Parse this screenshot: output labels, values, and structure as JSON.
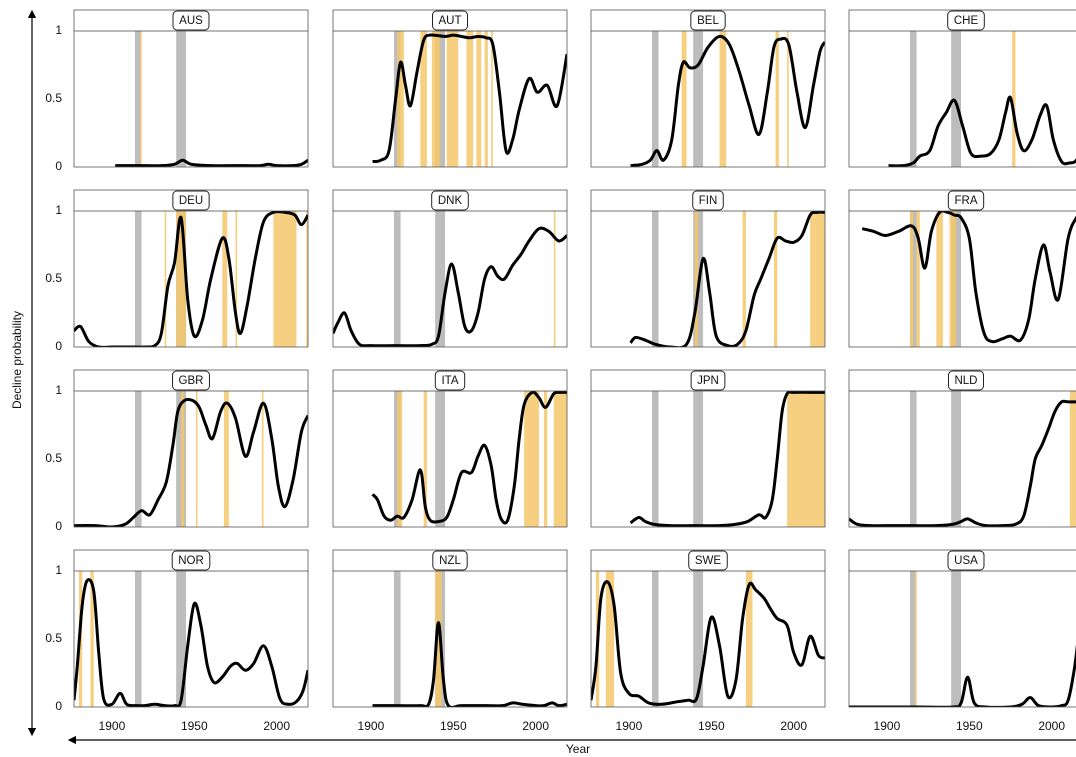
{
  "chart_data": {
    "type": "line",
    "xlabel": "Year",
    "ylabel": "Decline probability",
    "xlim": [
      1877,
      2019
    ],
    "xticks": [
      1900,
      1950,
      2000
    ],
    "ylim": [
      0,
      1
    ],
    "yticks": [
      0,
      0.5,
      1
    ],
    "line_color": "#000000",
    "reference_color": "#bdbdbd",
    "period_color": "#f5c76b",
    "reference_periods": [
      [
        1914,
        1918
      ],
      [
        1939,
        1945
      ]
    ],
    "panels": [
      {
        "title": "AUS",
        "x": [
          1902,
          1910,
          1920,
          1930,
          1938,
          1943,
          1948,
          1960,
          1980,
          1990,
          1995,
          2000,
          2010,
          2015,
          2019
        ],
        "values": [
          0.01,
          0.01,
          0.01,
          0.01,
          0.02,
          0.05,
          0.02,
          0.01,
          0.01,
          0.01,
          0.02,
          0.01,
          0.01,
          0.02,
          0.05
        ],
        "decline_periods": [
          [
            1917,
            1918
          ]
        ]
      },
      {
        "title": "AUT",
        "x": [
          1901,
          1906,
          1911,
          1915,
          1918,
          1921,
          1924,
          1928,
          1932,
          1936,
          1945,
          1950,
          1955,
          1960,
          1965,
          1970,
          1974,
          1978,
          1982,
          1986,
          1990,
          1996,
          2001,
          2007,
          2013,
          2019
        ],
        "values": [
          0.04,
          0.05,
          0.12,
          0.5,
          0.77,
          0.6,
          0.45,
          0.7,
          0.93,
          0.97,
          0.96,
          0.97,
          0.96,
          0.95,
          0.96,
          0.95,
          0.9,
          0.55,
          0.12,
          0.2,
          0.42,
          0.65,
          0.55,
          0.6,
          0.45,
          0.83
        ],
        "decline_periods": [
          [
            1916,
            1920
          ],
          [
            1930,
            1934
          ],
          [
            1937,
            1942
          ],
          [
            1946,
            1953
          ],
          [
            1958,
            1962
          ],
          [
            1964,
            1967
          ],
          [
            1969,
            1971
          ],
          [
            1973,
            1974
          ]
        ]
      },
      {
        "title": "BEL",
        "x": [
          1901,
          1908,
          1913,
          1917,
          1921,
          1926,
          1930,
          1933,
          1937,
          1942,
          1948,
          1955,
          1961,
          1967,
          1973,
          1979,
          1984,
          1988,
          1992,
          1997,
          2002,
          2007,
          2012,
          2016,
          2019
        ],
        "values": [
          0.01,
          0.02,
          0.05,
          0.12,
          0.05,
          0.2,
          0.6,
          0.77,
          0.73,
          0.75,
          0.88,
          0.96,
          0.9,
          0.7,
          0.45,
          0.24,
          0.55,
          0.88,
          0.94,
          0.9,
          0.55,
          0.29,
          0.6,
          0.85,
          0.92
        ],
        "decline_periods": [
          [
            1932,
            1935
          ],
          [
            1955,
            1959
          ],
          [
            1989,
            1991
          ],
          [
            1996,
            1997
          ]
        ]
      },
      {
        "title": "CHE",
        "x": [
          1901,
          1910,
          1916,
          1920,
          1926,
          1931,
          1936,
          1941,
          1946,
          1951,
          1957,
          1963,
          1968,
          1972,
          1975,
          1979,
          1983,
          1988,
          1993,
          1997,
          2001,
          2006,
          2011,
          2015,
          2019
        ],
        "values": [
          0.01,
          0.01,
          0.03,
          0.08,
          0.12,
          0.3,
          0.4,
          0.49,
          0.3,
          0.1,
          0.08,
          0.1,
          0.2,
          0.4,
          0.51,
          0.25,
          0.12,
          0.2,
          0.38,
          0.45,
          0.2,
          0.04,
          0.03,
          0.05,
          0.15
        ],
        "decline_periods": [
          [
            1976,
            1978
          ]
        ]
      },
      {
        "title": "DEU",
        "x": [
          1877,
          1881,
          1886,
          1892,
          1900,
          1910,
          1920,
          1926,
          1930,
          1934,
          1938,
          1942,
          1946,
          1950,
          1955,
          1960,
          1967,
          1971,
          1975,
          1978,
          1982,
          1987,
          1992,
          1998,
          2005,
          2011,
          2015,
          2019
        ],
        "values": [
          0.12,
          0.15,
          0.04,
          0,
          0,
          0,
          0,
          0.01,
          0.1,
          0.45,
          0.62,
          0.95,
          0.35,
          0.08,
          0.2,
          0.5,
          0.8,
          0.65,
          0.25,
          0.1,
          0.3,
          0.65,
          0.92,
          0.99,
          0.99,
          0.97,
          0.9,
          0.97
        ],
        "decline_periods": [
          [
            1932,
            1933
          ],
          [
            1939,
            1945
          ],
          [
            1967,
            1970
          ],
          [
            1975,
            1976
          ],
          [
            1998,
            2012
          ],
          [
            2018,
            2019
          ]
        ]
      },
      {
        "title": "DNK",
        "x": [
          1877,
          1880,
          1884,
          1888,
          1893,
          1900,
          1915,
          1930,
          1937,
          1941,
          1945,
          1949,
          1953,
          1957,
          1961,
          1965,
          1969,
          1973,
          1977,
          1981,
          1986,
          1991,
          1996,
          2002,
          2008,
          2014,
          2019
        ],
        "values": [
          0.1,
          0.18,
          0.25,
          0.12,
          0.02,
          0.01,
          0.01,
          0.01,
          0.02,
          0.08,
          0.4,
          0.61,
          0.4,
          0.15,
          0.12,
          0.25,
          0.5,
          0.59,
          0.52,
          0.5,
          0.6,
          0.68,
          0.78,
          0.87,
          0.85,
          0.78,
          0.82
        ],
        "decline_periods": [
          [
            2011,
            2012
          ]
        ]
      },
      {
        "title": "FIN",
        "x": [
          1901,
          1904,
          1910,
          1916,
          1925,
          1935,
          1940,
          1945,
          1949,
          1953,
          1960,
          1966,
          1971,
          1976,
          1980,
          1985,
          1990,
          1995,
          2000,
          2005,
          2010,
          2014,
          2019
        ],
        "values": [
          0.03,
          0.07,
          0.05,
          0.02,
          0,
          0.02,
          0.25,
          0.65,
          0.4,
          0.08,
          0.01,
          0.02,
          0.12,
          0.38,
          0.5,
          0.65,
          0.8,
          0.78,
          0.77,
          0.82,
          0.97,
          0.99,
          0.99
        ],
        "decline_periods": [
          [
            1940,
            1942
          ],
          [
            1969,
            1971
          ],
          [
            1988,
            1990
          ],
          [
            2010,
            2019
          ]
        ]
      },
      {
        "title": "FRA",
        "x": [
          1885,
          1892,
          1899,
          1907,
          1915,
          1919,
          1923,
          1927,
          1932,
          1937,
          1941,
          1945,
          1950,
          1954,
          1959,
          1964,
          1970,
          1975,
          1981,
          1986,
          1990,
          1995,
          1999,
          2004,
          2010,
          2015,
          2019
        ],
        "values": [
          0.87,
          0.85,
          0.82,
          0.85,
          0.89,
          0.8,
          0.58,
          0.85,
          0.99,
          0.99,
          0.97,
          0.95,
          0.8,
          0.4,
          0.1,
          0.04,
          0.06,
          0.08,
          0.05,
          0.2,
          0.5,
          0.75,
          0.55,
          0.35,
          0.8,
          0.95,
          0.98
        ],
        "decline_periods": [
          [
            1914,
            1916
          ],
          [
            1918,
            1920
          ],
          [
            1930,
            1934
          ],
          [
            1938,
            1942
          ]
        ]
      },
      {
        "title": "GBR",
        "x": [
          1877,
          1890,
          1900,
          1908,
          1913,
          1918,
          1923,
          1928,
          1933,
          1937,
          1940,
          1944,
          1949,
          1953,
          1957,
          1961,
          1966,
          1970,
          1975,
          1981,
          1986,
          1992,
          1997,
          2001,
          2005,
          2010,
          2015,
          2019
        ],
        "values": [
          0.01,
          0.01,
          0,
          0.02,
          0.07,
          0.12,
          0.09,
          0.2,
          0.33,
          0.6,
          0.85,
          0.93,
          0.93,
          0.88,
          0.75,
          0.65,
          0.85,
          0.91,
          0.8,
          0.52,
          0.7,
          0.91,
          0.65,
          0.3,
          0.15,
          0.35,
          0.7,
          0.82
        ],
        "decline_periods": [
          [
            1942,
            1944
          ],
          [
            1951,
            1952
          ],
          [
            1968,
            1971
          ],
          [
            1991,
            1992
          ]
        ]
      },
      {
        "title": "ITA",
        "x": [
          1901,
          1904,
          1908,
          1912,
          1916,
          1920,
          1925,
          1930,
          1933,
          1936,
          1941,
          1946,
          1950,
          1955,
          1961,
          1965,
          1969,
          1973,
          1976,
          1979,
          1983,
          1987,
          1990,
          1993,
          1998,
          2002,
          2006,
          2011,
          2015,
          2019
        ],
        "values": [
          0.24,
          0.2,
          0.08,
          0.05,
          0.08,
          0.07,
          0.2,
          0.42,
          0.15,
          0.05,
          0.04,
          0.07,
          0.2,
          0.4,
          0.4,
          0.52,
          0.6,
          0.45,
          0.2,
          0.06,
          0.05,
          0.3,
          0.65,
          0.9,
          0.99,
          0.95,
          0.88,
          0.98,
          0.99,
          0.99
        ],
        "decline_periods": [
          [
            1916,
            1919
          ],
          [
            1932,
            1934
          ],
          [
            1993,
            2002
          ],
          [
            2005,
            2007
          ],
          [
            2011,
            2019
          ]
        ]
      },
      {
        "title": "JPN",
        "x": [
          1901,
          1906,
          1910,
          1915,
          1925,
          1940,
          1955,
          1965,
          1972,
          1979,
          1983,
          1987,
          1990,
          1993,
          1996,
          2000,
          2010,
          2019
        ],
        "values": [
          0.03,
          0.07,
          0.04,
          0.02,
          0.01,
          0.01,
          0.01,
          0.02,
          0.04,
          0.09,
          0.07,
          0.2,
          0.5,
          0.85,
          0.98,
          0.99,
          0.99,
          0.99
        ],
        "decline_periods": [
          [
            1996,
            2019
          ]
        ]
      },
      {
        "title": "NLD",
        "x": [
          1877,
          1882,
          1890,
          1900,
          1915,
          1930,
          1940,
          1945,
          1949,
          1954,
          1960,
          1970,
          1978,
          1983,
          1987,
          1990,
          1994,
          1998,
          2002,
          2006,
          2010,
          2015,
          2019
        ],
        "values": [
          0.06,
          0.02,
          0.01,
          0.01,
          0.01,
          0.01,
          0.02,
          0.04,
          0.06,
          0.03,
          0.01,
          0.01,
          0.02,
          0.08,
          0.3,
          0.5,
          0.6,
          0.72,
          0.85,
          0.92,
          0.92,
          0.92,
          0.92
        ],
        "decline_periods": [
          [
            2011,
            2019
          ]
        ]
      },
      {
        "title": "NOR",
        "x": [
          1877,
          1879,
          1882,
          1885,
          1889,
          1892,
          1895,
          1900,
          1905,
          1909,
          1915,
          1920,
          1926,
          1932,
          1938,
          1942,
          1946,
          1950,
          1954,
          1958,
          1962,
          1967,
          1972,
          1976,
          1981,
          1986,
          1992,
          1997,
          2002,
          2007,
          2012,
          2016,
          2019
        ],
        "values": [
          0.05,
          0.3,
          0.75,
          0.93,
          0.85,
          0.4,
          0.06,
          0.02,
          0.1,
          0.02,
          0.01,
          0.01,
          0.02,
          0.01,
          0.01,
          0.05,
          0.45,
          0.76,
          0.6,
          0.3,
          0.18,
          0.22,
          0.3,
          0.32,
          0.27,
          0.32,
          0.45,
          0.3,
          0.06,
          0.02,
          0.04,
          0.12,
          0.27
        ],
        "decline_periods": [
          [
            1880,
            1882
          ],
          [
            1887,
            1889
          ]
        ]
      },
      {
        "title": "NZL",
        "x": [
          1901,
          1915,
          1930,
          1935,
          1938,
          1941,
          1944,
          1947,
          1955,
          1970,
          1980,
          1986,
          1992,
          2000,
          2005,
          2010,
          2014,
          2019
        ],
        "values": [
          0.01,
          0.01,
          0.01,
          0.02,
          0.2,
          0.62,
          0.2,
          0.01,
          0.01,
          0.01,
          0.01,
          0.03,
          0.02,
          0.01,
          0.01,
          0.03,
          0.01,
          0.02
        ],
        "decline_periods": [
          [
            1939,
            1943
          ]
        ]
      },
      {
        "title": "SWE",
        "x": [
          1877,
          1880,
          1883,
          1887,
          1891,
          1895,
          1900,
          1906,
          1912,
          1920,
          1930,
          1936,
          1941,
          1945,
          1950,
          1955,
          1960,
          1965,
          1969,
          1973,
          1977,
          1982,
          1986,
          1990,
          1996,
          2000,
          2005,
          2010,
          2015,
          2019
        ],
        "values": [
          0.05,
          0.3,
          0.8,
          0.92,
          0.75,
          0.25,
          0.1,
          0.08,
          0.03,
          0.02,
          0.04,
          0.05,
          0.06,
          0.3,
          0.66,
          0.45,
          0.08,
          0.2,
          0.65,
          0.9,
          0.86,
          0.8,
          0.72,
          0.65,
          0.6,
          0.4,
          0.31,
          0.52,
          0.38,
          0.36
        ],
        "decline_periods": [
          [
            1880,
            1882
          ],
          [
            1886,
            1891
          ],
          [
            1971,
            1975
          ]
        ]
      },
      {
        "title": "USA",
        "x": [
          1877,
          1900,
          1920,
          1940,
          1945,
          1949,
          1953,
          1960,
          1975,
          1982,
          1987,
          1992,
          2000,
          2006,
          2010,
          2014,
          2017,
          2019
        ],
        "values": [
          0,
          0,
          0,
          0,
          0.03,
          0.22,
          0.03,
          0,
          0,
          0.02,
          0.07,
          0.01,
          0,
          0.01,
          0.05,
          0.3,
          0.6,
          0.75
        ],
        "decline_periods": [
          [
            1917,
            1918
          ]
        ]
      }
    ]
  }
}
